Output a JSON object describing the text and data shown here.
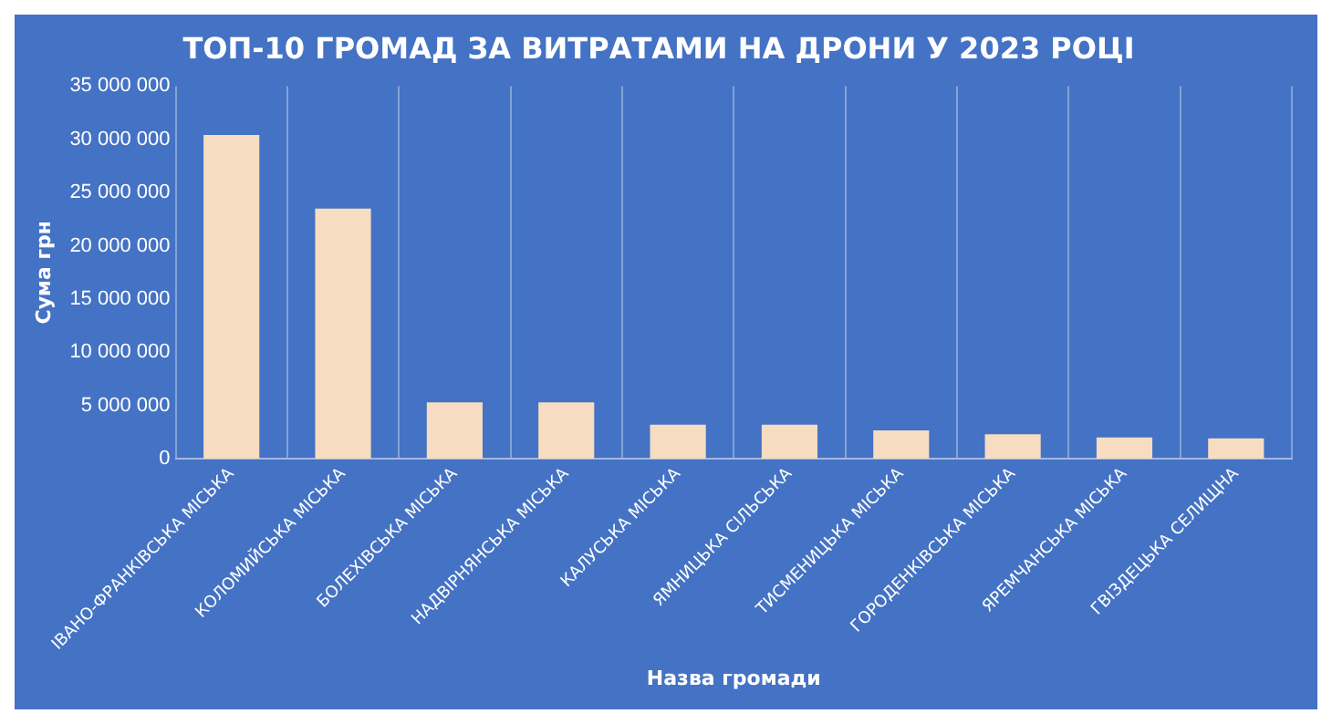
{
  "chart_data": {
    "type": "bar",
    "title": "ТОП-10 ГРОМАД ЗА ВИТРАТАМИ НА ДРОНИ У 2023 РОЦІ",
    "xlabel": "Назва громади",
    "ylabel": "Сума грн",
    "categories": [
      "ІВАНО-ФРАНКІВСЬКА МІСЬКА",
      "КОЛОМИЙСЬКА МІСЬКА",
      "БОЛЕХІВСЬКА МІСЬКА",
      "НАДВІРНЯНСЬКА МІСЬКА",
      "КАЛУСЬКА МІСЬКА",
      "ЯМНИЦЬКА СІЛЬСЬКА",
      "ТИСМЕНИЦЬКА МІСЬКА",
      "ГОРОДЕНКІВСЬКА МІСЬКА",
      "ЯРЕМЧАНСЬКА МІСЬКА",
      "ГВІЗДЕЦЬКА СЕЛИЩНА"
    ],
    "values": [
      30400000,
      23500000,
      5300000,
      5300000,
      3200000,
      3200000,
      2650000,
      2300000,
      2000000,
      1900000
    ],
    "color": "#f6dcc0",
    "ylim": [
      0,
      35000000
    ],
    "yticks": [
      0,
      {
        "value": 5000000,
        "label": "5 000 000"
      },
      {
        "value": 10000000,
        "label": "10 000 000"
      },
      {
        "value": 15000000,
        "label": "15 000 000"
      },
      {
        "value": 20000000,
        "label": "20 000 000"
      },
      {
        "value": 25000000,
        "label": "25 000 000"
      },
      {
        "value": 30000000,
        "label": "30 000 000"
      },
      {
        "value": 35000000,
        "label": "35 000 000"
      }
    ],
    "grid": "x",
    "legend": false
  }
}
